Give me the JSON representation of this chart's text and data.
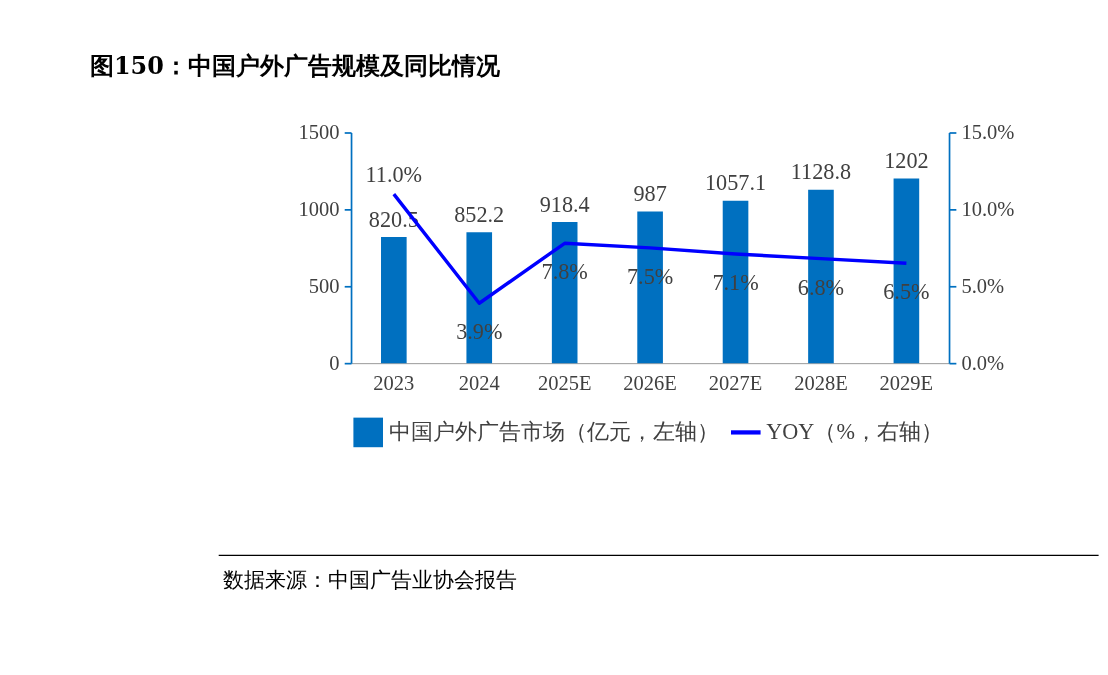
{
  "chart_data": {
    "type": "bar",
    "title": "图150：中国户外广告规模及同比情况",
    "categories": [
      "2023",
      "2024",
      "2025E",
      "2026E",
      "2027E",
      "2028E",
      "2029E"
    ],
    "series": [
      {
        "name": "中国户外广告市场（亿元，左轴）",
        "color": "#0070c0",
        "values": [
          820.5,
          852.2,
          918.4,
          987,
          1057.1,
          1128.8,
          1202
        ]
      },
      {
        "name": "YOY（%，右轴）",
        "type": "line",
        "axis": "y2",
        "color": "#0000ff",
        "values": [
          11.0,
          3.9,
          7.8,
          7.5,
          7.1,
          6.8,
          6.5
        ],
        "value_labels": [
          "11.0%",
          "3.9%",
          "7.8%",
          "7.5%",
          "7.1%",
          "6.8%",
          "6.5%"
        ]
      }
    ],
    "ylim": [
      0,
      1500
    ],
    "yticks": [
      0,
      500,
      1000,
      1500
    ],
    "y2lim": [
      0,
      15
    ],
    "y2ticks": [
      {
        "value": 0,
        "label": "0.0%"
      },
      {
        "value": 5,
        "label": "5.0%"
      },
      {
        "value": 10,
        "label": "10.0%"
      },
      {
        "value": 15,
        "label": "15.0%"
      }
    ],
    "data_labels": true,
    "grid": false,
    "legend": "bottom",
    "marker": "none",
    "line_style": "solid",
    "annotations": [
      "数据来源：中国广告业协会报告"
    ]
  }
}
